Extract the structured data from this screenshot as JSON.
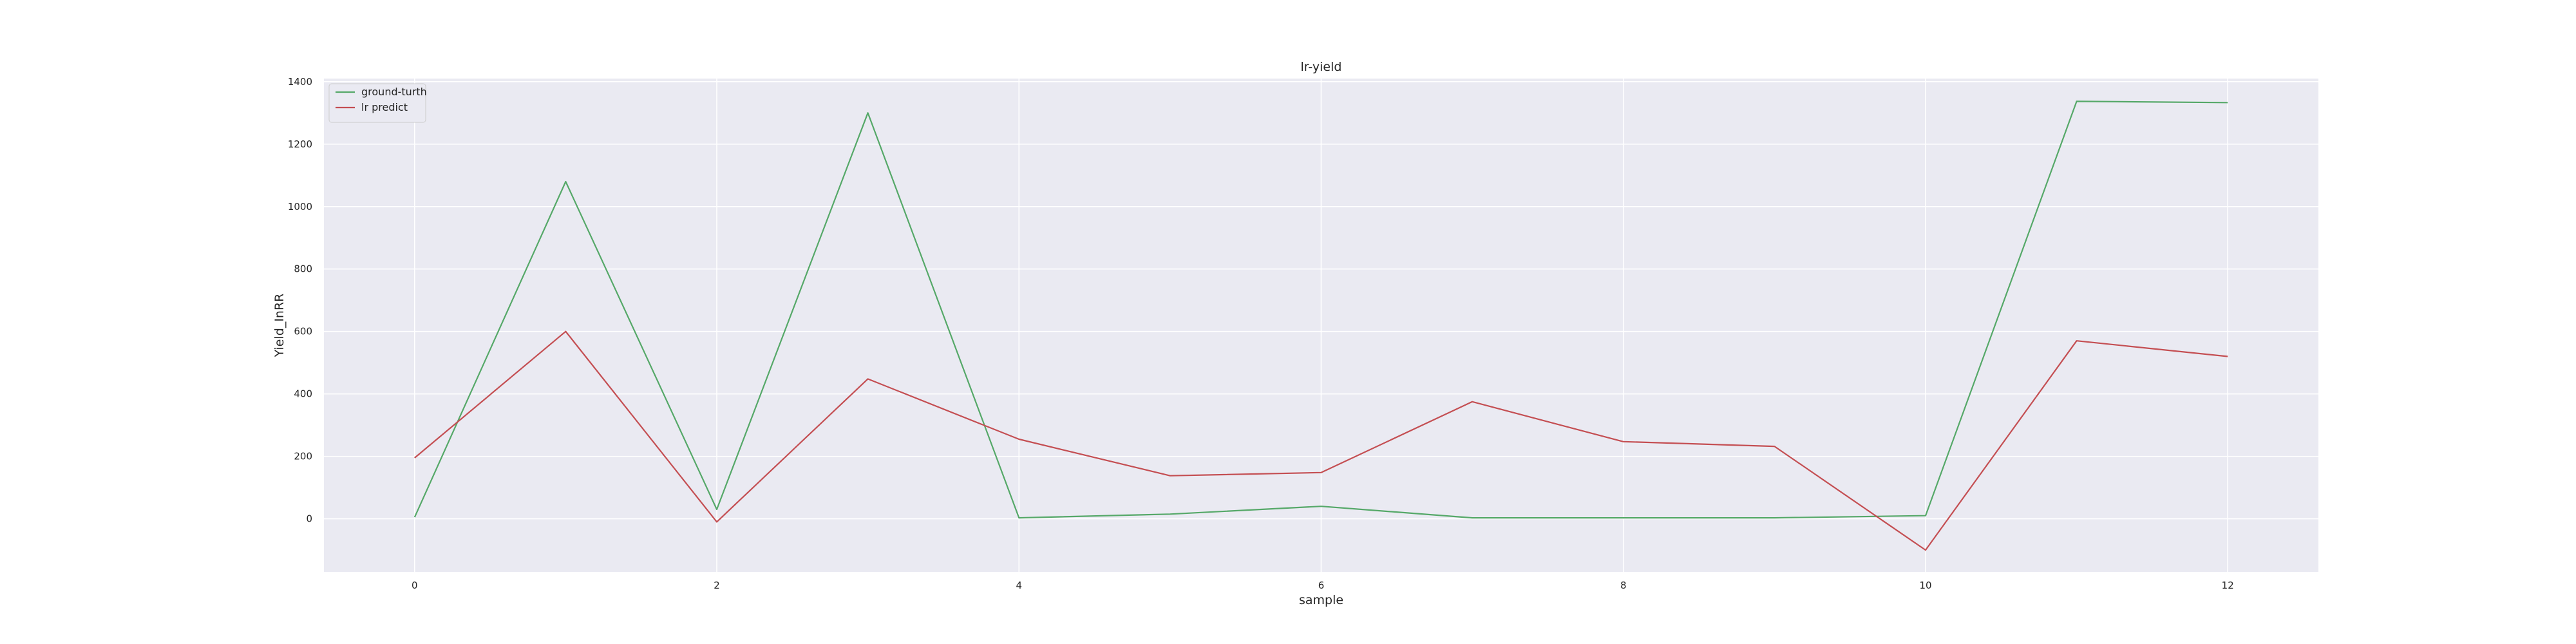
{
  "chart_data": {
    "type": "line",
    "title": "lr-yield",
    "xlabel": "sample",
    "ylabel": "Yield_InRR",
    "x": [
      0,
      1,
      2,
      3,
      4,
      5,
      6,
      7,
      8,
      9,
      10,
      11,
      12
    ],
    "xticks": [
      0,
      2,
      4,
      6,
      8,
      10,
      12
    ],
    "yticks": [
      0,
      200,
      400,
      600,
      800,
      1000,
      1200,
      1400
    ],
    "xlim": [
      -0.6,
      12.6
    ],
    "ylim": [
      -170,
      1410
    ],
    "grid": true,
    "legend_position": "top-left",
    "background_color": "#eaeaf2",
    "series": [
      {
        "name": "ground-turth",
        "color": "#55a868",
        "values": [
          5,
          1080,
          30,
          1300,
          3,
          15,
          40,
          3,
          3,
          3,
          10,
          1337,
          1333
        ]
      },
      {
        "name": "lr predict",
        "color": "#c44e52",
        "values": [
          195,
          600,
          -10,
          448,
          255,
          138,
          148,
          375,
          247,
          232,
          -100,
          570,
          520
        ]
      }
    ]
  }
}
